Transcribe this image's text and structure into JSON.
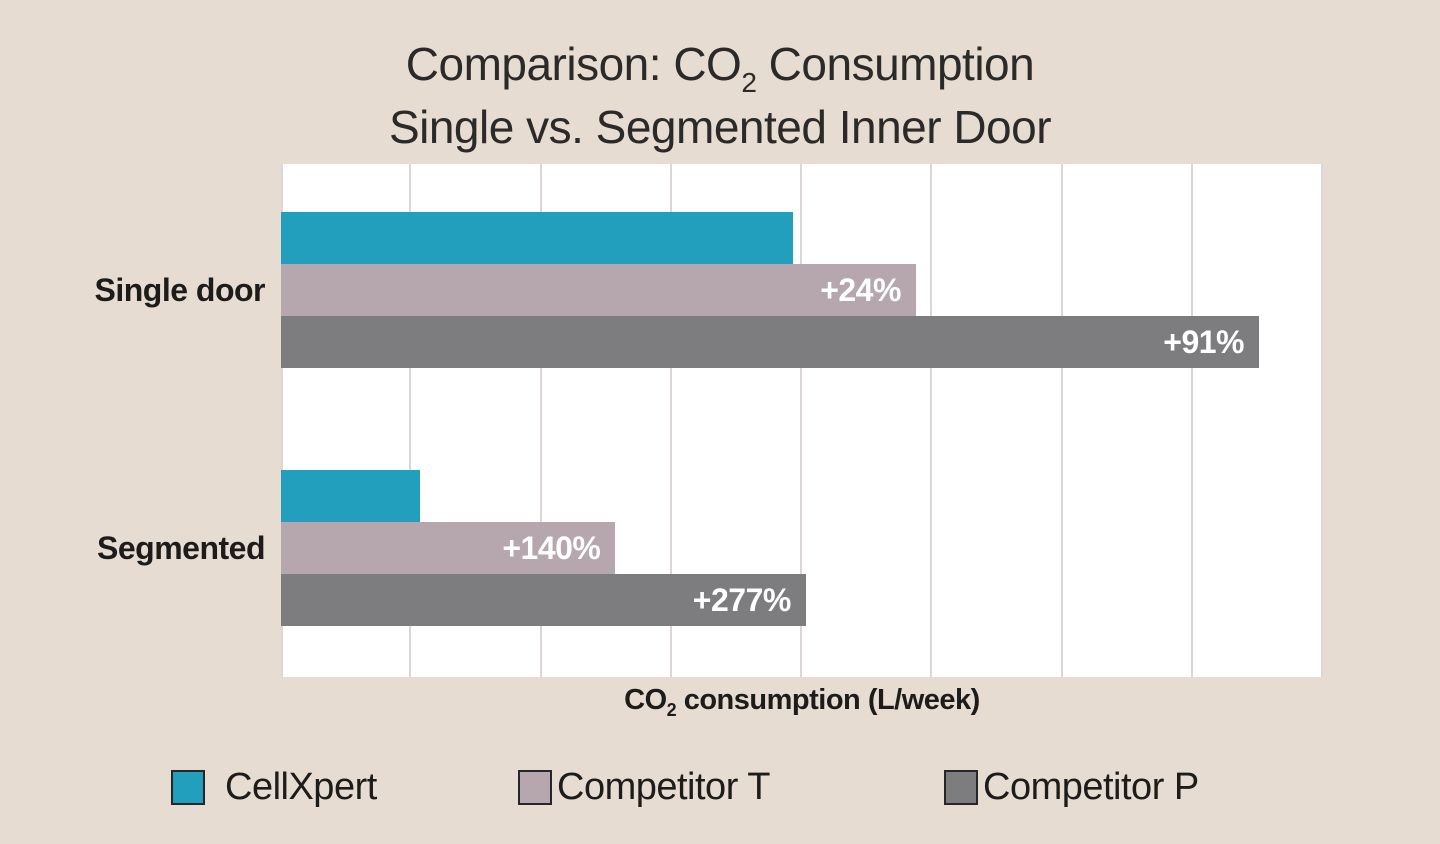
{
  "page": {
    "background_color": "#e6dcd2",
    "plot_background_color": "#ffffff",
    "gridline_color": "#dcd7d6",
    "text_color": "#2c2a28"
  },
  "chart_data": {
    "type": "bar",
    "orientation": "horizontal",
    "title_line1": {
      "pre": "Comparison: CO",
      "sub": "2",
      "post": " Consumption"
    },
    "title_line2": "Single vs. Segmented Inner Door",
    "xlabel": {
      "pre": "CO",
      "sub": "2",
      "post": " consumption (L/week)"
    },
    "categories": [
      "Single door",
      "Segmented"
    ],
    "series": [
      {
        "name": "CellXpert",
        "color": "#219fbc",
        "values": [
          100,
          27.2
        ],
        "labels": [
          "",
          ""
        ]
      },
      {
        "name": "Competitor T",
        "color": "#b5a7ad",
        "values": [
          124,
          65.3
        ],
        "labels": [
          "+24%",
          "+140%"
        ]
      },
      {
        "name": "Competitor P",
        "color": "#7d7d80",
        "values": [
          191,
          102.5
        ],
        "labels": [
          "+91%",
          "+277%"
        ]
      }
    ],
    "value_units": "relative units; CellXpert Single door bar = 100, no numeric tick labels shown",
    "bar_labels_meaning": "percent increase vs CellXpert",
    "axis": {
      "xmin": 0,
      "xmax": 203.5,
      "gridline_count": 8,
      "tick_labels_visible": false
    },
    "legend_position": "bottom",
    "grid": "vertical only"
  },
  "legend": {
    "items": [
      {
        "label": "CellXpert",
        "color": "#219fbc"
      },
      {
        "label": "Competitor T",
        "color": "#b5a7ad"
      },
      {
        "label": "Competitor P",
        "color": "#7d7d80"
      }
    ]
  }
}
